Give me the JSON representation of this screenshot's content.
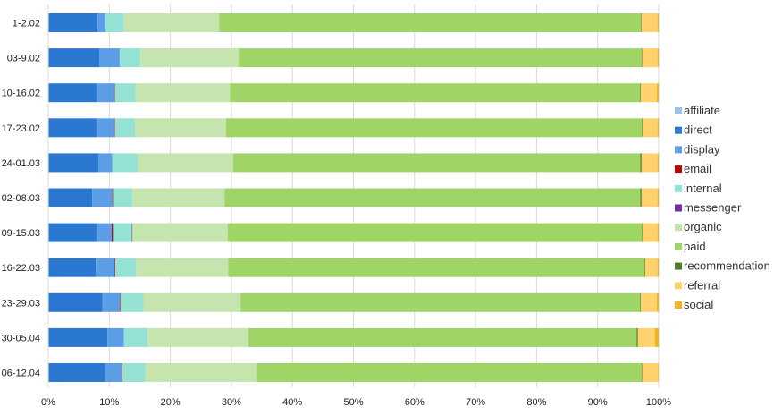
{
  "chart_data": {
    "type": "bar",
    "orientation": "horizontal",
    "stacked": true,
    "normalized": true,
    "title": "",
    "xlabel": "",
    "ylabel": "",
    "xlim": [
      0,
      100
    ],
    "x_ticks": [
      "0%",
      "10%",
      "20%",
      "30%",
      "40%",
      "50%",
      "60%",
      "70%",
      "80%",
      "90%",
      "100%"
    ],
    "grid": "vertical",
    "legend_position": "right",
    "categories": [
      "1-2.02",
      "03-9.02",
      "10-16.02",
      "17-23.02",
      "24-01.03",
      "02-08.03",
      "09-15.03",
      "16-22.03",
      "23-29.03",
      "30-05.04",
      "06-12.04"
    ],
    "series": [
      {
        "name": "affiliate",
        "color": "#9dc3e6",
        "values": [
          0.1,
          0.1,
          0.1,
          0.1,
          0.1,
          0.1,
          0.1,
          0.1,
          0.1,
          0.1,
          0.1
        ]
      },
      {
        "name": "direct",
        "color": "#2b78d0",
        "values": [
          8.0,
          8.3,
          7.8,
          7.8,
          8.1,
          7.1,
          7.8,
          7.7,
          8.8,
          9.6,
          9.2
        ]
      },
      {
        "name": "display",
        "color": "#5b9ee6",
        "values": [
          1.3,
          3.3,
          2.9,
          2.9,
          2.3,
          3.3,
          2.5,
          3.1,
          2.8,
          2.7,
          2.7
        ]
      },
      {
        "name": "email",
        "color": "#c00000",
        "values": [
          0.0,
          0.0,
          0.1,
          0.1,
          0.0,
          0.1,
          0.2,
          0.1,
          0.1,
          0.0,
          0.1
        ]
      },
      {
        "name": "internal",
        "color": "#94e2d4",
        "values": [
          3.0,
          3.4,
          3.4,
          3.3,
          4.2,
          3.2,
          3.1,
          3.4,
          3.8,
          3.9,
          3.8
        ]
      },
      {
        "name": "messenger",
        "color": "#7030a0",
        "values": [
          0.0,
          0.0,
          0.0,
          0.0,
          0.0,
          0.0,
          0.1,
          0.0,
          0.0,
          0.0,
          0.0
        ]
      },
      {
        "name": "organic",
        "color": "#c6e5ae",
        "values": [
          15.6,
          16.1,
          15.5,
          14.9,
          15.6,
          15.1,
          15.6,
          15.1,
          15.9,
          16.5,
          18.3
        ]
      },
      {
        "name": "paid",
        "color": "#9fd466",
        "values": [
          69.1,
          66.0,
          67.2,
          68.2,
          66.7,
          68.1,
          67.9,
          68.2,
          65.5,
          63.6,
          63.0
        ]
      },
      {
        "name": "recommendation",
        "color": "#4f7f2c",
        "values": [
          0.1,
          0.1,
          0.1,
          0.1,
          0.2,
          0.2,
          0.1,
          0.1,
          0.1,
          0.2,
          0.1
        ]
      },
      {
        "name": "referral",
        "color": "#ffd26e",
        "values": [
          2.6,
          2.5,
          2.6,
          2.4,
          2.6,
          2.6,
          2.4,
          2.0,
          2.6,
          2.8,
          2.6
        ]
      },
      {
        "name": "social",
        "color": "#f6b21b",
        "values": [
          0.2,
          0.2,
          0.3,
          0.2,
          0.2,
          0.2,
          0.2,
          0.2,
          0.3,
          0.6,
          0.1
        ]
      }
    ]
  }
}
